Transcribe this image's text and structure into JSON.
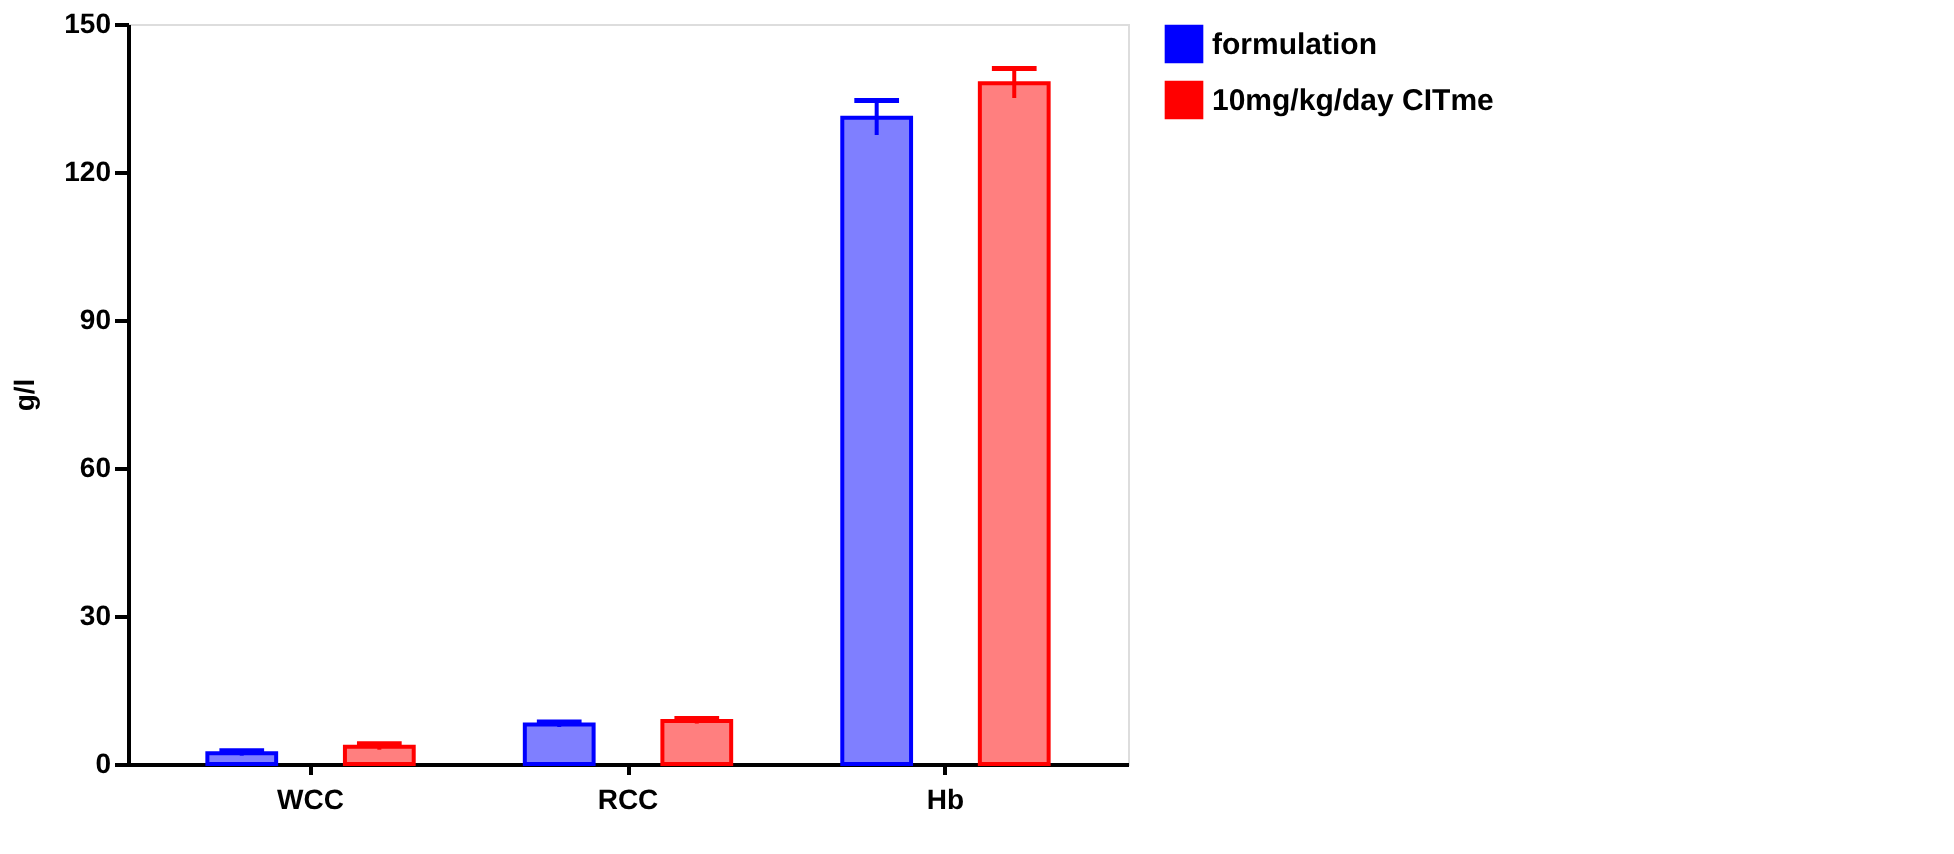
{
  "chart_data": {
    "type": "bar",
    "ylabel": "g/l",
    "categories": [
      "WCC",
      "RCC",
      "Hb"
    ],
    "series": [
      {
        "name": "formulation",
        "color": "#0000ff",
        "values": [
          2.2,
          8.0,
          131
        ],
        "errors": [
          0.5,
          0.5,
          3.5
        ]
      },
      {
        "name": "10mg/kg/day CITme",
        "color": "#ff0000",
        "values": [
          3.5,
          8.7,
          138
        ],
        "errors": [
          0.6,
          0.5,
          3
        ]
      }
    ],
    "ylim": [
      0,
      150
    ],
    "yticks": [
      0,
      30,
      60,
      90,
      120,
      150
    ],
    "grid": false,
    "legend": "top right"
  }
}
